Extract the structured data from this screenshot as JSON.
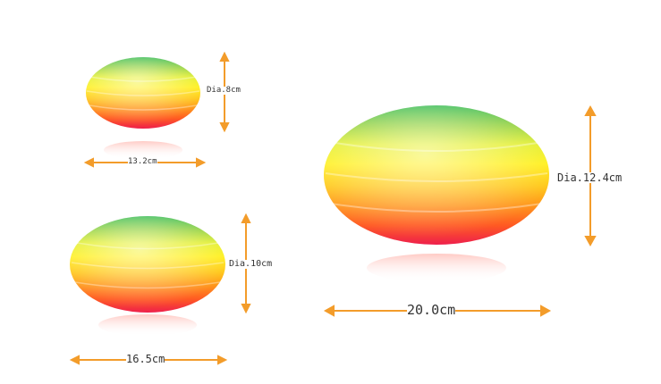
{
  "products": [
    {
      "id": "small",
      "width_label": "13.2cm",
      "dia_label": "Dia.8cm"
    },
    {
      "id": "medium",
      "width_label": "16.5cm",
      "dia_label": "Dia.10cm"
    },
    {
      "id": "large",
      "width_label": "20.0cm",
      "dia_label": "Dia.12.4cm"
    }
  ],
  "colors": {
    "arrow": "#f39c2a",
    "stripes": [
      "#2fb84a",
      "#9ad33a",
      "#e6ef2c",
      "#ffe81e",
      "#ffc21a",
      "#ff8c1c",
      "#ff4e22",
      "#f0204a"
    ]
  },
  "icons": [
    "dimension-arrow-icon"
  ]
}
